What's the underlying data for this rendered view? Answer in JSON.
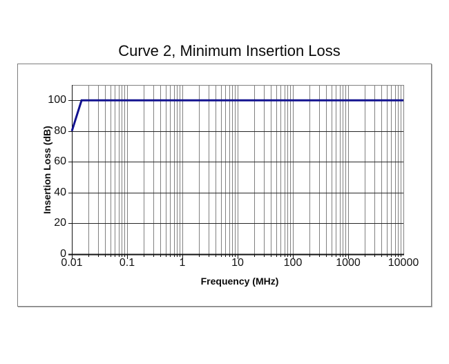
{
  "chart_data": {
    "type": "line",
    "title": "Curve 2, Minimum Insertion Loss",
    "xlabel": "Frequency (MHz)",
    "ylabel": "Insertion Loss (dB)",
    "xscale": "log",
    "yscale": "linear",
    "xlim": [
      0.01,
      10000
    ],
    "ylim": [
      0,
      110
    ],
    "xticks": {
      "values": [
        0.01,
        0.1,
        1,
        10,
        100,
        1000,
        10000
      ],
      "labels": [
        "0.01",
        "0.1",
        "1",
        "10",
        "100",
        "1000",
        "10000"
      ]
    },
    "yticks": {
      "values": [
        0,
        20,
        40,
        60,
        80,
        100
      ],
      "labels": [
        "0",
        "20",
        "40",
        "60",
        "80",
        "100"
      ]
    },
    "grid": {
      "x_minor": true,
      "x_major": true,
      "y_major": true,
      "y_minor": false
    },
    "legend": "none",
    "series": [
      {
        "name": "Curve 2",
        "color": "#12128f",
        "points": [
          [
            0.01,
            80
          ],
          [
            0.015,
            100
          ],
          [
            10000,
            100
          ]
        ]
      }
    ]
  },
  "colors": {
    "background": "#ffffff",
    "frame_border": "#7d7d7d",
    "grid_vertical": "#808080",
    "grid_horizontal": "#262626",
    "axis_line": "#111111",
    "text": "#0a0a0a",
    "curve": "#12128f"
  }
}
